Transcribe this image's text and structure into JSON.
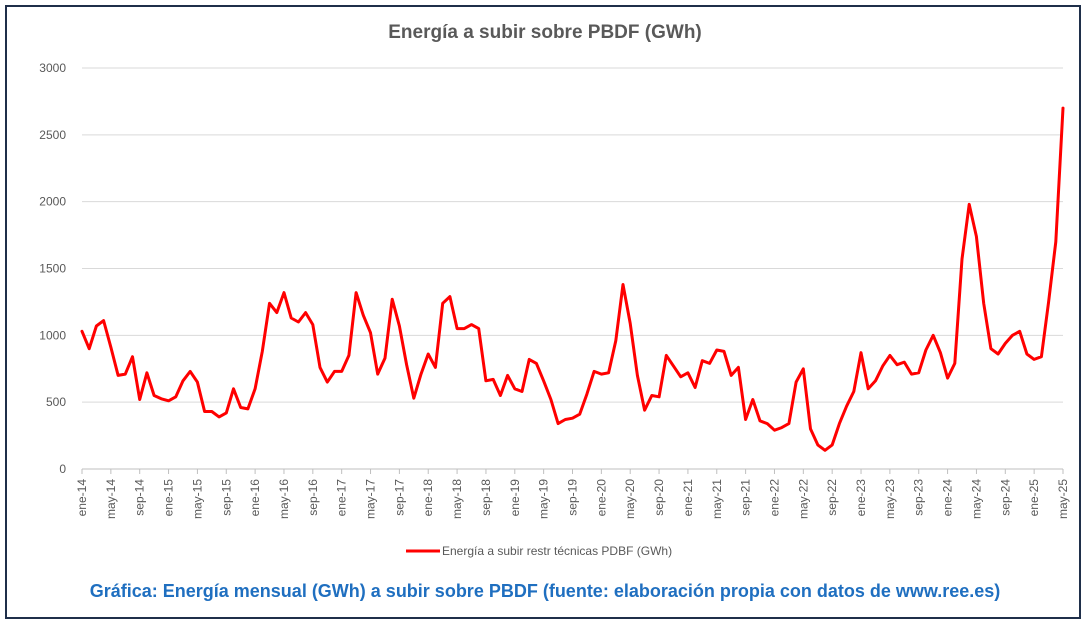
{
  "chart_data": {
    "type": "line",
    "title": "Energía a subir sobre PBDF (GWh)",
    "caption": "Gráfica: Energía mensual (GWh) a subir sobre PBDF (fuente: elaboración propia con datos de www.ree.es)",
    "ylim": [
      0,
      3000
    ],
    "yticks": [
      0,
      500,
      1000,
      1500,
      2000,
      2500,
      3000
    ],
    "x_tick_labels": [
      "ene-14",
      "may-14",
      "sep-14",
      "ene-15",
      "may-15",
      "sep-15",
      "ene-16",
      "may-16",
      "sep-16",
      "ene-17",
      "may-17",
      "sep-17",
      "ene-18",
      "may-18",
      "sep-18",
      "ene-19",
      "may-19",
      "sep-19",
      "ene-20",
      "may-20",
      "sep-20",
      "ene-21",
      "may-21",
      "sep-21",
      "ene-22",
      "may-22",
      "sep-22",
      "ene-23",
      "may-23",
      "sep-23",
      "ene-24",
      "may-24",
      "sep-24",
      "ene-25",
      "may-25"
    ],
    "grid": true,
    "legend_position": "bottom",
    "colors": {
      "series": "#ff0000",
      "grid": "#d9d9d9",
      "axis": "#bfbfbf"
    },
    "series": [
      {
        "name": "Energía a subir restr técnicas PDBF (GWh)",
        "values": [
          1030,
          900,
          1070,
          1110,
          910,
          700,
          710,
          840,
          520,
          720,
          550,
          525,
          510,
          540,
          660,
          730,
          650,
          430,
          430,
          390,
          420,
          600,
          460,
          450,
          600,
          880,
          1240,
          1170,
          1320,
          1130,
          1100,
          1170,
          1080,
          760,
          650,
          730,
          730,
          850,
          1320,
          1150,
          1020,
          710,
          830,
          1270,
          1070,
          780,
          530,
          710,
          860,
          760,
          1240,
          1290,
          1050,
          1050,
          1080,
          1050,
          660,
          670,
          550,
          700,
          600,
          580,
          820,
          790,
          660,
          520,
          340,
          370,
          380,
          410,
          560,
          730,
          710,
          720,
          960,
          1380,
          1090,
          700,
          440,
          550,
          540,
          850,
          770,
          690,
          720,
          610,
          810,
          790,
          890,
          880,
          700,
          760,
          370,
          520,
          360,
          340,
          290,
          310,
          340,
          650,
          750,
          300,
          180,
          140,
          180,
          340,
          470,
          580,
          870,
          600,
          660,
          770,
          850,
          780,
          800,
          710,
          720,
          890,
          1000,
          870,
          680,
          790,
          1570,
          1980,
          1740,
          1240,
          900,
          860,
          940,
          1000,
          1030,
          860,
          820,
          840,
          1250,
          1700,
          2700
        ]
      }
    ]
  }
}
